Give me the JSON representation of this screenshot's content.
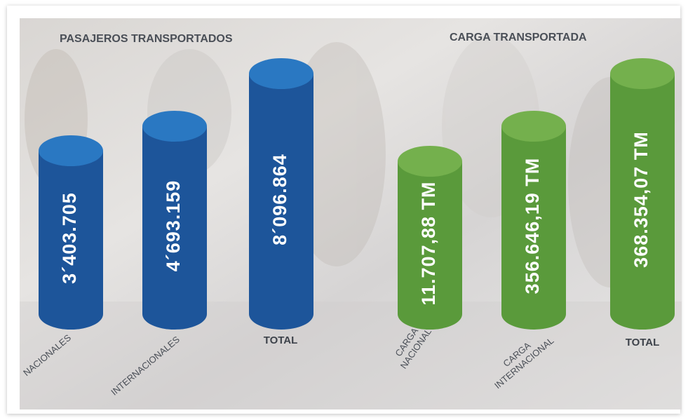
{
  "panels": [
    {
      "title": "PASAJEROS TRANSPORTADOS",
      "items": [
        {
          "value": "3´403.705",
          "label": [
            "NACIONALES"
          ]
        },
        {
          "value": "4´693.159",
          "label": [
            "INTERNACIONALES"
          ]
        },
        {
          "value": "8´096.864",
          "label": [
            "TOTAL"
          ]
        }
      ]
    },
    {
      "title": "CARGA TRANSPORTADA",
      "items": [
        {
          "value": "11.707,88 TM",
          "label": [
            "CARGA",
            "NACIONAL"
          ]
        },
        {
          "value": "356.646,19 TM",
          "label": [
            "CARGA",
            "INTERNACIONAL"
          ]
        },
        {
          "value": "368.354,07 TM",
          "label": [
            "TOTAL"
          ]
        }
      ]
    }
  ]
}
